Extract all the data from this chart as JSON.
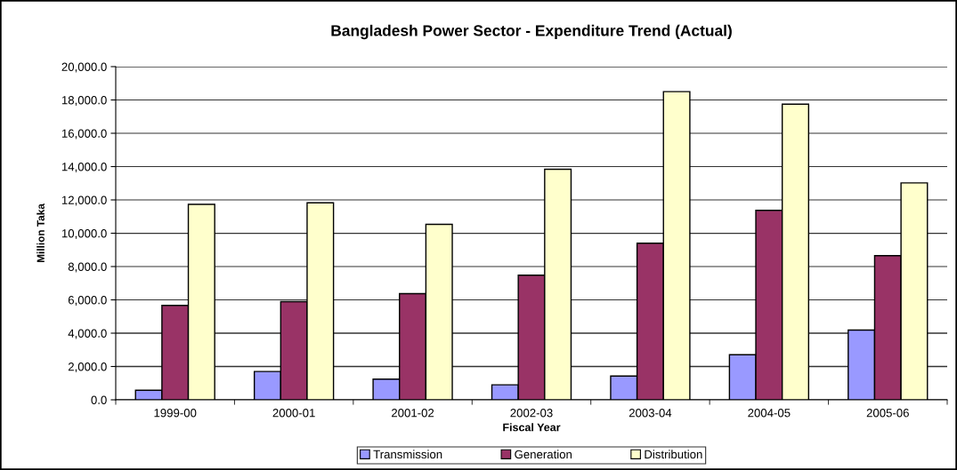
{
  "chart_data": {
    "type": "bar",
    "title": "Bangladesh Power Sector - Expenditure Trend (Actual)",
    "xlabel": "Fiscal Year",
    "ylabel": "Million Taka",
    "categories": [
      "1999-00",
      "2000-01",
      "2001-02",
      "2002-03",
      "2003-04",
      "2004-05",
      "2005-06"
    ],
    "series": [
      {
        "name": "Transmission",
        "color": "#9999ff",
        "values": [
          570,
          1700,
          1240,
          900,
          1430,
          2710,
          4190
        ]
      },
      {
        "name": "Generation",
        "color": "#993366",
        "values": [
          5670,
          5890,
          6370,
          7480,
          9400,
          11370,
          8650
        ]
      },
      {
        "name": "Distribution",
        "color": "#ffffcc",
        "values": [
          11730,
          11830,
          10530,
          13840,
          18500,
          17750,
          13020
        ]
      }
    ],
    "ylim": [
      0,
      20000
    ],
    "yticks": [
      {
        "value": 0,
        "label": "0.0"
      },
      {
        "value": 2000,
        "label": "2,000.0"
      },
      {
        "value": 4000,
        "label": "4,000.0"
      },
      {
        "value": 6000,
        "label": "6,000.0"
      },
      {
        "value": 8000,
        "label": "8,000.0"
      },
      {
        "value": 10000,
        "label": "10,000.0"
      },
      {
        "value": 12000,
        "label": "12,000.0"
      },
      {
        "value": 14000,
        "label": "14,000.0"
      },
      {
        "value": 16000,
        "label": "16,000.0"
      },
      {
        "value": 18000,
        "label": "18,000.0"
      },
      {
        "value": 20000,
        "label": "20,000.0"
      }
    ],
    "grid": "y",
    "legend": "bottom"
  }
}
